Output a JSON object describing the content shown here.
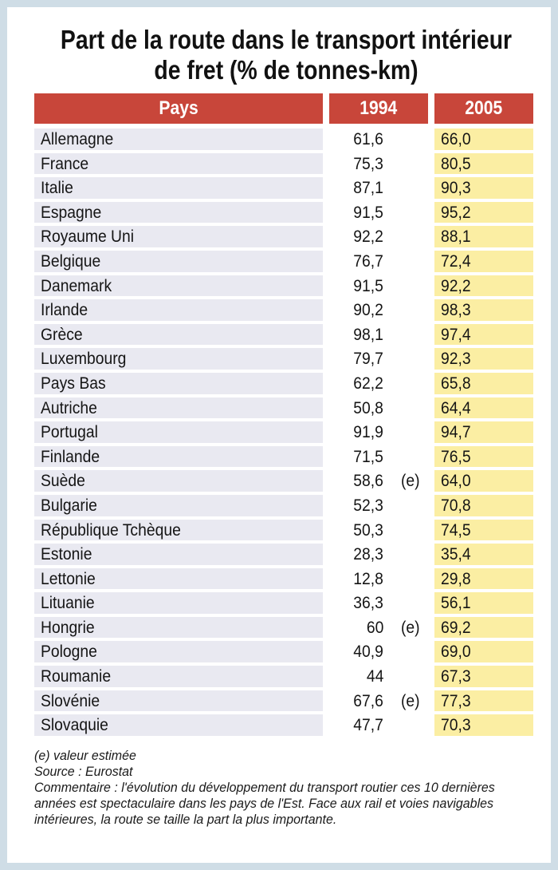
{
  "title": {
    "line1": "Part de la route dans le transport intérieur",
    "line2": "de fret (% de tonnes-km)"
  },
  "table": {
    "headers": {
      "country": "Pays",
      "year1": "1994",
      "year2": "2005"
    },
    "rows": [
      {
        "country": "Allemagne",
        "v1994": "61,6",
        "est": "",
        "v2005": "66,0"
      },
      {
        "country": "France",
        "v1994": "75,3",
        "est": "",
        "v2005": "80,5"
      },
      {
        "country": "Italie",
        "v1994": "87,1",
        "est": "",
        "v2005": "90,3"
      },
      {
        "country": "Espagne",
        "v1994": "91,5",
        "est": "",
        "v2005": "95,2"
      },
      {
        "country": "Royaume Uni",
        "v1994": "92,2",
        "est": "",
        "v2005": "88,1"
      },
      {
        "country": "Belgique",
        "v1994": "76,7",
        "est": "",
        "v2005": "72,4"
      },
      {
        "country": "Danemark",
        "v1994": "91,5",
        "est": "",
        "v2005": "92,2"
      },
      {
        "country": "Irlande",
        "v1994": "90,2",
        "est": "",
        "v2005": "98,3"
      },
      {
        "country": "Grèce",
        "v1994": "98,1",
        "est": "",
        "v2005": "97,4"
      },
      {
        "country": "Luxembourg",
        "v1994": "79,7",
        "est": "",
        "v2005": "92,3"
      },
      {
        "country": "Pays Bas",
        "v1994": "62,2",
        "est": "",
        "v2005": "65,8"
      },
      {
        "country": "Autriche",
        "v1994": "50,8",
        "est": "",
        "v2005": "64,4"
      },
      {
        "country": "Portugal",
        "v1994": "91,9",
        "est": "",
        "v2005": "94,7"
      },
      {
        "country": "Finlande",
        "v1994": "71,5",
        "est": "",
        "v2005": "76,5"
      },
      {
        "country": "Suède",
        "v1994": "58,6",
        "est": "(e)",
        "v2005": "64,0"
      },
      {
        "country": "Bulgarie",
        "v1994": "52,3",
        "est": "",
        "v2005": "70,8"
      },
      {
        "country": "République Tchèque",
        "v1994": "50,3",
        "est": "",
        "v2005": "74,5"
      },
      {
        "country": "Estonie",
        "v1994": "28,3",
        "est": "",
        "v2005": "35,4"
      },
      {
        "country": "Lettonie",
        "v1994": "12,8",
        "est": "",
        "v2005": "29,8"
      },
      {
        "country": "Lituanie",
        "v1994": "36,3",
        "est": "",
        "v2005": "56,1"
      },
      {
        "country": "Hongrie",
        "v1994": "60",
        "est": "(e)",
        "v2005": "69,2"
      },
      {
        "country": "Pologne",
        "v1994": "40,9",
        "est": "",
        "v2005": "69,0"
      },
      {
        "country": "Roumanie",
        "v1994": "44",
        "est": "",
        "v2005": "67,3"
      },
      {
        "country": "Slovénie",
        "v1994": "67,6",
        "est": "(e)",
        "v2005": "77,3"
      },
      {
        "country": "Slovaquie",
        "v1994": "47,7",
        "est": "",
        "v2005": "70,3"
      }
    ]
  },
  "notes": {
    "legend": "(e) valeur estimée",
    "source": "Source : Eurostat",
    "comment": "Commentaire : l'évolution du développement du transport routier ces 10 dernières années est spectaculaire dans les pays de l'Est. Face aux rail et voies navigables intérieures, la route se taille la part la plus importante."
  },
  "colors": {
    "border": "#cfdde6",
    "header": "#c8463a",
    "country_cell": "#e9e9f1",
    "year2005_cell": "#fbeea3"
  }
}
